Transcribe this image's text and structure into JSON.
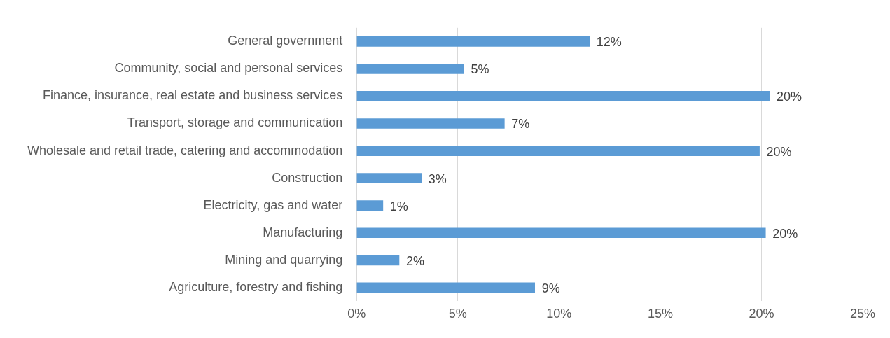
{
  "chart_data": {
    "type": "bar",
    "orientation": "horizontal",
    "categories": [
      "General government",
      "Community, social and personal services",
      "Finance, insurance, real estate and business services",
      "Transport, storage and communication",
      "Wholesale and retail trade, catering and accommodation",
      "Construction",
      "Electricity, gas and water",
      "Manufacturing",
      "Mining and quarrying",
      "Agriculture, forestry and fishing"
    ],
    "values": [
      11.5,
      5.3,
      20.4,
      7.3,
      19.9,
      3.2,
      1.3,
      20.2,
      2.1,
      8.8
    ],
    "value_labels": [
      "12%",
      "5%",
      "20%",
      "7%",
      "20%",
      "3%",
      "1%",
      "20%",
      "2%",
      "9%"
    ],
    "color": "#5b9bd5",
    "xlim": [
      0,
      25
    ],
    "xticks": [
      {
        "value": 0,
        "label": "0%"
      },
      {
        "value": 5,
        "label": "5%"
      },
      {
        "value": 10,
        "label": "10%"
      },
      {
        "value": 15,
        "label": "15%"
      },
      {
        "value": 20,
        "label": "20%"
      },
      {
        "value": 25,
        "label": "25%"
      }
    ],
    "grid": "x",
    "legend": false
  }
}
